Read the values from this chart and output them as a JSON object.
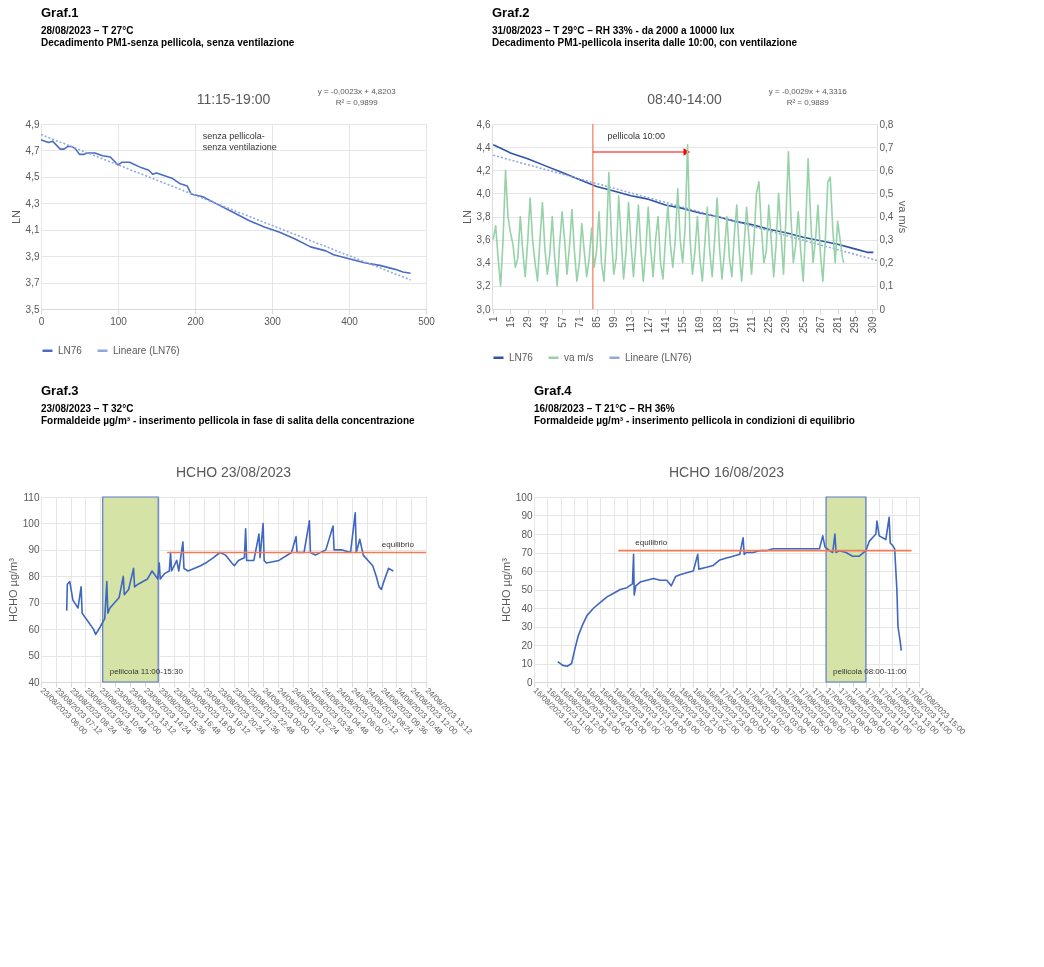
{
  "chart_data": [
    {
      "type": "line",
      "title": "Graf.1",
      "subtitle": "28/08/2023 – T 27°C",
      "ylabel": "LN",
      "annotations": [
        "Decadimento PM1-senza pellicola, senza ventilazione",
        "11:15-19:00",
        "y = -0,0023x + 4,8203",
        "R² = 0,9899",
        "senza pellicola-\nsenza ventilazione"
      ],
      "xlim": [
        0,
        500
      ],
      "xticks": [
        0,
        100,
        200,
        300,
        400,
        500
      ],
      "ylim": [
        3.5,
        4.9
      ],
      "yticks": [
        {
          "value": 3.5,
          "label": "3,5"
        },
        {
          "value": 3.7,
          "label": "3,7"
        },
        {
          "value": 3.9,
          "label": "3,9"
        },
        {
          "value": 4.1,
          "label": "4,1"
        },
        {
          "value": 4.3,
          "label": "4,3"
        },
        {
          "value": 4.5,
          "label": "4,5"
        },
        {
          "value": 4.7,
          "label": "4,7"
        },
        {
          "value": 4.9,
          "label": "4,9"
        }
      ],
      "grid": true,
      "legend": "bottom",
      "line_style": "solid",
      "series": [
        {
          "name": "LN76",
          "color": "#4a6cc3",
          "x": [
            0,
            5,
            10,
            15,
            20,
            25,
            30,
            35,
            40,
            45,
            50,
            55,
            60,
            65,
            70,
            80,
            90,
            95,
            100,
            105,
            115,
            130,
            140,
            145,
            150,
            170,
            180,
            190,
            195,
            210,
            230,
            250,
            270,
            290,
            310,
            330,
            350,
            370,
            380,
            400,
            420,
            440,
            460,
            470,
            480
          ],
          "values": [
            4.78,
            4.77,
            4.76,
            4.77,
            4.74,
            4.71,
            4.71,
            4.73,
            4.73,
            4.71,
            4.67,
            4.67,
            4.68,
            4.68,
            4.68,
            4.66,
            4.65,
            4.62,
            4.59,
            4.61,
            4.61,
            4.57,
            4.55,
            4.52,
            4.53,
            4.49,
            4.45,
            4.43,
            4.37,
            4.35,
            4.29,
            4.23,
            4.17,
            4.12,
            4.08,
            4.03,
            3.97,
            3.94,
            3.91,
            3.88,
            3.85,
            3.83,
            3.8,
            3.78,
            3.77
          ]
        },
        {
          "name": "Lineare (LN76)",
          "color": "#8fa8e0",
          "line_style": "dotted",
          "x": [
            0,
            480
          ],
          "values": [
            4.82,
            3.72
          ]
        }
      ]
    },
    {
      "type": "line",
      "title": "Graf.2",
      "subtitle": "31/08/2023 – T 29°C – RH 33% - da 2000 a 10000 lux",
      "ylabel": "LN",
      "y2label": "va m/s",
      "annotations": [
        "Decadimento PM1-pellicola inserita dalle 10:00, con ventilazione",
        "08:40-14:00",
        "y = -0,0029x + 4,3316",
        "R² = 0,9889",
        "pellicola 10:00"
      ],
      "xlim": [
        0,
        313
      ],
      "xticks": [
        1,
        15,
        29,
        43,
        57,
        71,
        85,
        99,
        113,
        127,
        141,
        155,
        169,
        183,
        197,
        211,
        225,
        239,
        253,
        267,
        281,
        295,
        309
      ],
      "ylim": [
        3.0,
        4.6
      ],
      "yticks": [
        {
          "value": 3.0,
          "label": "3,0"
        },
        {
          "value": 3.2,
          "label": "3,2"
        },
        {
          "value": 3.4,
          "label": "3,4"
        },
        {
          "value": 3.6,
          "label": "3,6"
        },
        {
          "value": 3.8,
          "label": "3,8"
        },
        {
          "value": 4.0,
          "label": "4,0"
        },
        {
          "value": 4.2,
          "label": "4,2"
        },
        {
          "value": 4.4,
          "label": "4,4"
        },
        {
          "value": 4.6,
          "label": "4,6"
        }
      ],
      "y2lim": [
        0,
        0.8
      ],
      "y2ticks": [
        0,
        {
          "value": 0.1,
          "label": "0,1"
        },
        {
          "value": 0.2,
          "label": "0,2"
        },
        {
          "value": 0.3,
          "label": "0,3"
        },
        {
          "value": 0.4,
          "label": "0,4"
        },
        {
          "value": 0.5,
          "label": "0,5"
        },
        {
          "value": 0.6,
          "label": "0,6"
        },
        {
          "value": 0.7,
          "label": "0,7"
        },
        {
          "value": 0.8,
          "label": "0,8"
        }
      ],
      "grid": "y",
      "legend": "bottom",
      "line_style": "solid",
      "ref_lines": [
        {
          "axis": "x",
          "value": 82,
          "color": "#f07a5a"
        }
      ],
      "series": [
        {
          "name": "LN76",
          "color": "#2f52a6",
          "x": [
            1,
            15,
            29,
            43,
            57,
            71,
            85,
            99,
            113,
            127,
            141,
            155,
            169,
            183,
            197,
            211,
            225,
            239,
            253,
            267,
            281,
            295,
            305,
            310
          ],
          "values": [
            4.42,
            4.35,
            4.3,
            4.24,
            4.18,
            4.12,
            4.06,
            4.02,
            3.98,
            3.95,
            3.9,
            3.87,
            3.83,
            3.8,
            3.76,
            3.73,
            3.69,
            3.66,
            3.62,
            3.59,
            3.56,
            3.52,
            3.49,
            3.49
          ]
        },
        {
          "name": "va m/s",
          "color": "#96d2a8",
          "axis": "y2",
          "x": [
            1,
            3,
            5,
            7,
            9,
            11,
            13,
            15,
            17,
            19,
            21,
            23,
            25,
            27,
            29,
            31,
            33,
            35,
            37,
            39,
            41,
            43,
            45,
            47,
            49,
            51,
            53,
            55,
            57,
            59,
            61,
            63,
            65,
            67,
            69,
            71,
            73,
            75,
            77,
            79,
            81,
            83,
            85,
            87,
            89,
            91,
            93,
            95,
            97,
            99,
            101,
            103,
            105,
            107,
            109,
            111,
            113,
            115,
            117,
            119,
            121,
            123,
            125,
            127,
            129,
            131,
            133,
            135,
            137,
            139,
            141,
            143,
            145,
            147,
            149,
            151,
            153,
            155,
            157,
            159,
            161,
            163,
            165,
            167,
            169,
            171,
            173,
            175,
            177,
            179,
            181,
            183,
            185,
            187,
            189,
            191,
            193,
            195,
            197,
            199,
            201,
            203,
            205,
            207,
            209,
            211,
            213,
            215,
            217,
            219,
            221,
            223,
            225,
            227,
            229,
            231,
            233,
            235,
            237,
            239,
            241,
            243,
            245,
            247,
            249,
            251,
            253,
            255,
            257,
            259,
            261,
            263,
            265,
            267,
            269,
            271,
            273,
            275,
            277,
            279,
            281,
            283,
            285,
            286
          ],
          "values": [
            0.3,
            0.36,
            0.22,
            0.1,
            0.3,
            0.6,
            0.4,
            0.33,
            0.28,
            0.18,
            0.22,
            0.4,
            0.25,
            0.14,
            0.29,
            0.48,
            0.3,
            0.2,
            0.12,
            0.3,
            0.46,
            0.26,
            0.15,
            0.24,
            0.4,
            0.22,
            0.1,
            0.28,
            0.42,
            0.3,
            0.15,
            0.27,
            0.43,
            0.25,
            0.12,
            0.2,
            0.37,
            0.25,
            0.14,
            0.22,
            0.35,
            0.18,
            0.25,
            0.42,
            0.2,
            0.12,
            0.3,
            0.59,
            0.32,
            0.15,
            0.22,
            0.49,
            0.3,
            0.13,
            0.25,
            0.46,
            0.28,
            0.14,
            0.28,
            0.45,
            0.26,
            0.12,
            0.25,
            0.44,
            0.26,
            0.14,
            0.3,
            0.4,
            0.2,
            0.13,
            0.3,
            0.45,
            0.28,
            0.18,
            0.3,
            0.52,
            0.3,
            0.2,
            0.35,
            0.71,
            0.3,
            0.15,
            0.25,
            0.4,
            0.22,
            0.12,
            0.28,
            0.44,
            0.25,
            0.14,
            0.3,
            0.48,
            0.26,
            0.13,
            0.25,
            0.4,
            0.22,
            0.14,
            0.32,
            0.45,
            0.25,
            0.12,
            0.28,
            0.44,
            0.3,
            0.15,
            0.3,
            0.5,
            0.55,
            0.35,
            0.2,
            0.25,
            0.45,
            0.3,
            0.14,
            0.28,
            0.5,
            0.32,
            0.15,
            0.4,
            0.68,
            0.4,
            0.2,
            0.28,
            0.42,
            0.25,
            0.12,
            0.35,
            0.65,
            0.4,
            0.2,
            0.3,
            0.45,
            0.24,
            0.12,
            0.3,
            0.55,
            0.57,
            0.35,
            0.2,
            0.38,
            0.3,
            0.22,
            0.2
          ]
        },
        {
          "name": "Lineare (LN76)",
          "color": "#8fa8e0",
          "line_style": "dotted",
          "x": [
            1,
            313
          ],
          "values": [
            4.33,
            3.42
          ]
        }
      ]
    },
    {
      "type": "line",
      "title": "Graf.3",
      "subtitle": "23/08/2023 – T 32°C",
      "ylabel": "HCHO µg/m³",
      "annotations": [
        "Formaldeide µg/m³ - inserimento pellicola in fase di salita della concentrazione",
        "HCHO 23/08/2023",
        {
          "text": "equilibrio",
          "x": "2023-08-24T10:55",
          "y": 89
        }
      ],
      "xlim": [
        "2023-08-23T06:00",
        "2023-08-24T13:12"
      ],
      "xticks": [
        {
          "value": "2023-08-23T06:00",
          "label": "23/08/2023 06:00"
        },
        {
          "value": "2023-08-23T07:12",
          "label": "23/08/2023 07:12"
        },
        {
          "value": "2023-08-23T08:24",
          "label": "23/08/2023 08:24"
        },
        {
          "value": "2023-08-23T09:36",
          "label": "23/08/2023 09:36"
        },
        {
          "value": "2023-08-23T10:48",
          "label": "23/08/2023 10:48"
        },
        {
          "value": "2023-08-23T12:00",
          "label": "23/08/2023 12:00"
        },
        {
          "value": "2023-08-23T13:12",
          "label": "23/08/2023 13:12"
        },
        {
          "value": "2023-08-23T14:24",
          "label": "23/08/2023 14:24"
        },
        {
          "value": "2023-08-23T15:36",
          "label": "23/08/2023 15:36"
        },
        {
          "value": "2023-08-23T16:48",
          "label": "23/08/2023 16:48"
        },
        {
          "value": "2023-08-23T18:00",
          "label": "23/08/2023 18:00"
        },
        {
          "value": "2023-08-23T19:12",
          "label": "23/08/2023 19:12"
        },
        {
          "value": "2023-08-23T20:24",
          "label": "23/08/2023 20:24"
        },
        {
          "value": "2023-08-23T21:36",
          "label": "23/08/2023 21:36"
        },
        {
          "value": "2023-08-23T22:48",
          "label": "23/08/2023 22:48"
        },
        {
          "value": "2023-08-24T00:00",
          "label": "24/08/2023 00:00"
        },
        {
          "value": "2023-08-24T01:12",
          "label": "24/08/2023 01:12"
        },
        {
          "value": "2023-08-24T02:24",
          "label": "24/08/2023 02:24"
        },
        {
          "value": "2023-08-24T03:36",
          "label": "24/08/2023 03:36"
        },
        {
          "value": "2023-08-24T04:48",
          "label": "24/08/2023 04:48"
        },
        {
          "value": "2023-08-24T06:00",
          "label": "24/08/2023 06:00"
        },
        {
          "value": "2023-08-24T07:12",
          "label": "24/08/2023 07:12"
        },
        {
          "value": "2023-08-24T08:24",
          "label": "24/08/2023 08:24"
        },
        {
          "value": "2023-08-24T09:36",
          "label": "24/08/2023 09:36"
        },
        {
          "value": "2023-08-24T10:48",
          "label": "24/08/2023 10:48"
        },
        {
          "value": "2023-08-24T12:00",
          "label": "24/08/2023 12:00"
        },
        {
          "value": "2023-08-24T13:12",
          "label": "24/08/2023 13:12"
        }
      ],
      "ylim": [
        40,
        110
      ],
      "yticks": [
        40,
        50,
        60,
        70,
        80,
        90,
        100,
        110
      ],
      "grid": true,
      "line_style": "solid",
      "bands": [
        {
          "axis": "x",
          "from": "2023-08-23T11:00",
          "to": "2023-08-23T15:30",
          "label": "pellicola 11:00-15:30",
          "color": "#d5e3a6"
        }
      ],
      "series": [
        {
          "color": "#3f67c0",
          "x": [
            "2023-08-23T08:05",
            "2023-08-23T08:08",
            "2023-08-23T08:20",
            "2023-08-23T08:35",
            "2023-08-23T09:00",
            "2023-08-23T09:15",
            "2023-08-23T09:20",
            "2023-08-23T09:48",
            "2023-08-23T10:15",
            "2023-08-23T10:26",
            "2023-08-23T10:49",
            "2023-08-23T11:10",
            "2023-08-23T11:20",
            "2023-08-23T11:25",
            "2023-08-23T11:35",
            "2023-08-23T12:20",
            "2023-08-23T12:40",
            "2023-08-23T12:45",
            "2023-08-23T13:06",
            "2023-08-23T13:30",
            "2023-08-23T13:35",
            "2023-08-23T13:52",
            "2023-08-23T14:38",
            "2023-08-23T15:00",
            "2023-08-23T15:28",
            "2023-08-23T15:35",
            "2023-08-23T15:40",
            "2023-08-23T16:00",
            "2023-08-23T16:24",
            "2023-08-23T16:30",
            "2023-08-23T16:35",
            "2023-08-23T17:00",
            "2023-08-23T17:10",
            "2023-08-23T17:30",
            "2023-08-23T17:35",
            "2023-08-23T17:55",
            "2023-08-23T18:56",
            "2023-08-23T19:20",
            "2023-08-23T19:57",
            "2023-08-23T20:30",
            "2023-08-23T20:58",
            "2023-08-23T21:28",
            "2023-08-23T21:40",
            "2023-08-23T22:00",
            "2023-08-23T22:29",
            "2023-08-23T22:35",
            "2023-08-23T22:40",
            "2023-08-23T23:15",
            "2023-08-23T23:40",
            "2023-08-23T23:45",
            "2023-08-24T00:00",
            "2023-08-24T00:05",
            "2023-08-24T00:16",
            "2023-08-24T01:17",
            "2023-08-24T02:18",
            "2023-08-24T02:40",
            "2023-08-24T02:45",
            "2023-08-24T03:19",
            "2023-08-24T03:45",
            "2023-08-24T03:50",
            "2023-08-24T04:14",
            "2023-08-24T05:05",
            "2023-08-24T05:40",
            "2023-08-24T05:45",
            "2023-08-24T06:21",
            "2023-08-24T07:05",
            "2023-08-24T07:28",
            "2023-08-24T07:33",
            "2023-08-24T07:50",
            "2023-08-24T08:07",
            "2023-08-24T08:30",
            "2023-08-24T08:53",
            "2023-08-24T09:10",
            "2023-08-24T09:24",
            "2023-08-24T09:35",
            "2023-08-24T09:47",
            "2023-08-24T10:10",
            "2023-08-24T10:33"
          ],
          "values": [
            67,
            77,
            78,
            71,
            68,
            76,
            66,
            63,
            60,
            58,
            61,
            64,
            78,
            66,
            68,
            72,
            80,
            73,
            75,
            83,
            76,
            77,
            79,
            82,
            79,
            85,
            79,
            81,
            82,
            89,
            82,
            86,
            82,
            93,
            83,
            82,
            84,
            85,
            87,
            89,
            88,
            85,
            84,
            86,
            87,
            98,
            86,
            86,
            96,
            87,
            100,
            86,
            85,
            86,
            89,
            95,
            89,
            89,
            101,
            89,
            88,
            90,
            99,
            90,
            90,
            89,
            104,
            89,
            94,
            88,
            86,
            84,
            80,
            76,
            75,
            78,
            83,
            82
          ]
        },
        {
          "color": "#f27a55",
          "x": [
            "2023-08-23T16:13",
            "2023-08-24T13:12"
          ],
          "values": [
            89,
            89
          ]
        }
      ]
    },
    {
      "type": "line",
      "title": "Graf.4",
      "subtitle": "16/08/2023 – T 21°C – RH 36%",
      "ylabel": "HCHO µg/m³",
      "annotations": [
        "Formaldeide µg/m³ - inserimento pellicola in condizioni di equilibrio",
        "HCHO 16/08/2023",
        {
          "text": "equilibrio",
          "x": "2023-08-16T18:50",
          "y": 71
        }
      ],
      "xlim": [
        "2023-08-16T10:00",
        "2023-08-17T15:00"
      ],
      "xticks": [
        {
          "value": "2023-08-16T10:00",
          "label": "16/08/2023 10:00"
        },
        {
          "value": "2023-08-16T11:00",
          "label": "16/08/2023 11:00"
        },
        {
          "value": "2023-08-16T12:00",
          "label": "16/08/2023 12:00"
        },
        {
          "value": "2023-08-16T13:00",
          "label": "16/08/2023 13:00"
        },
        {
          "value": "2023-08-16T14:00",
          "label": "16/08/2023 14:00"
        },
        {
          "value": "2023-08-16T15:00",
          "label": "16/08/2023 15:00"
        },
        {
          "value": "2023-08-16T16:00",
          "label": "16/08/2023 16:00"
        },
        {
          "value": "2023-08-16T17:00",
          "label": "16/08/2023 17:00"
        },
        {
          "value": "2023-08-16T18:00",
          "label": "16/08/2023 18:00"
        },
        {
          "value": "2023-08-16T19:00",
          "label": "16/08/2023 19:00"
        },
        {
          "value": "2023-08-16T20:00",
          "label": "16/08/2023 20:00"
        },
        {
          "value": "2023-08-16T21:00",
          "label": "16/08/2023 21:00"
        },
        {
          "value": "2023-08-16T22:00",
          "label": "16/08/2023 22:00"
        },
        {
          "value": "2023-08-16T23:00",
          "label": "16/08/2023 23:00"
        },
        {
          "value": "2023-08-17T00:00",
          "label": "17/08/2023 00:00"
        },
        {
          "value": "2023-08-17T01:00",
          "label": "17/08/2023 01:00"
        },
        {
          "value": "2023-08-17T02:00",
          "label": "17/08/2023 02:00"
        },
        {
          "value": "2023-08-17T03:00",
          "label": "17/08/2023 03:00"
        },
        {
          "value": "2023-08-17T04:00",
          "label": "17/08/2023 04:00"
        },
        {
          "value": "2023-08-17T05:00",
          "label": "17/08/2023 05:00"
        },
        {
          "value": "2023-08-17T06:00",
          "label": "17/08/2023 06:00"
        },
        {
          "value": "2023-08-17T07:00",
          "label": "17/08/2023 07:00"
        },
        {
          "value": "2023-08-17T08:00",
          "label": "17/08/2023 08:00"
        },
        {
          "value": "2023-08-17T09:00",
          "label": "17/08/2023 09:00"
        },
        {
          "value": "2023-08-17T10:00",
          "label": "17/08/2023 10:00"
        },
        {
          "value": "2023-08-17T11:00",
          "label": "17/08/2023 11:00"
        },
        {
          "value": "2023-08-17T12:00",
          "label": "17/08/2023 12:00"
        },
        {
          "value": "2023-08-17T13:00",
          "label": "17/08/2023 13:00"
        },
        {
          "value": "2023-08-17T14:00",
          "label": "17/08/2023 14:00"
        },
        {
          "value": "2023-08-17T15:00",
          "label": "17/08/2023 15:00"
        }
      ],
      "ylim": [
        0,
        100
      ],
      "yticks": [
        0,
        10,
        20,
        30,
        40,
        50,
        60,
        70,
        80,
        90,
        100
      ],
      "grid": true,
      "line_style": "solid",
      "bands": [
        {
          "axis": "x",
          "from": "2023-08-17T08:00",
          "to": "2023-08-17T11:00",
          "label": "pellicola 08:00-11:00",
          "color": "#d5e3a6"
        }
      ],
      "series": [
        {
          "color": "#3f67c0",
          "x": [
            "2023-08-16T11:47",
            "2023-08-16T12:10",
            "2023-08-16T12:30",
            "2023-08-16T12:50",
            "2023-08-16T13:05",
            "2023-08-16T13:20",
            "2023-08-16T13:40",
            "2023-08-16T14:00",
            "2023-08-16T14:30",
            "2023-08-16T15:00",
            "2023-08-16T15:30",
            "2023-08-16T16:00",
            "2023-08-16T16:30",
            "2023-08-16T17:00",
            "2023-08-16T17:25",
            "2023-08-16T17:30",
            "2023-08-16T17:33",
            "2023-08-16T17:40",
            "2023-08-16T18:00",
            "2023-08-16T18:30",
            "2023-08-16T19:00",
            "2023-08-16T19:30",
            "2023-08-16T20:00",
            "2023-08-16T20:20",
            "2023-08-16T20:40",
            "2023-08-16T21:00",
            "2023-08-16T21:30",
            "2023-08-16T22:00",
            "2023-08-16T22:20",
            "2023-08-16T22:25",
            "2023-08-16T23:00",
            "2023-08-16T23:30",
            "2023-08-17T00:00",
            "2023-08-17T00:30",
            "2023-08-17T01:00",
            "2023-08-17T01:30",
            "2023-08-17T01:45",
            "2023-08-17T01:50",
            "2023-08-17T02:00",
            "2023-08-17T02:30",
            "2023-08-17T03:00",
            "2023-08-17T03:30",
            "2023-08-17T04:00",
            "2023-08-17T04:30",
            "2023-08-17T05:00",
            "2023-08-17T05:30",
            "2023-08-17T06:00",
            "2023-08-17T06:30",
            "2023-08-17T07:00",
            "2023-08-17T07:30",
            "2023-08-17T07:45",
            "2023-08-17T07:55",
            "2023-08-17T08:15",
            "2023-08-17T08:30",
            "2023-08-17T08:40",
            "2023-08-17T08:45",
            "2023-08-17T09:00",
            "2023-08-17T09:30",
            "2023-08-17T10:00",
            "2023-08-17T10:30",
            "2023-08-17T11:00",
            "2023-08-17T11:15",
            "2023-08-17T11:30",
            "2023-08-17T11:45",
            "2023-08-17T11:50",
            "2023-08-17T12:00",
            "2023-08-17T12:30",
            "2023-08-17T12:45",
            "2023-08-17T12:50",
            "2023-08-17T13:00",
            "2023-08-17T13:10",
            "2023-08-17T13:20",
            "2023-08-17T13:25",
            "2023-08-17T13:35",
            "2023-08-17T13:40"
          ],
          "values": [
            11,
            9,
            8.5,
            10,
            18,
            25,
            31,
            36,
            40,
            43,
            46,
            48,
            50,
            51,
            53,
            69,
            47,
            52,
            54,
            55,
            56,
            55,
            55,
            52,
            57,
            58,
            59,
            60,
            69,
            61,
            62,
            63,
            66,
            67,
            68,
            69,
            78,
            69,
            70,
            70,
            71,
            71,
            72,
            72,
            72,
            72,
            72,
            72,
            72,
            72,
            79,
            73,
            71,
            70,
            80,
            70,
            71,
            70,
            68,
            68,
            71,
            76,
            78,
            80,
            87,
            79,
            77,
            89,
            75,
            74,
            72,
            50,
            30,
            22,
            17
          ]
        },
        {
          "color": "#f27a55",
          "x": [
            "2023-08-16T16:21",
            "2023-08-17T14:26"
          ],
          "values": [
            71,
            71
          ]
        }
      ]
    }
  ]
}
